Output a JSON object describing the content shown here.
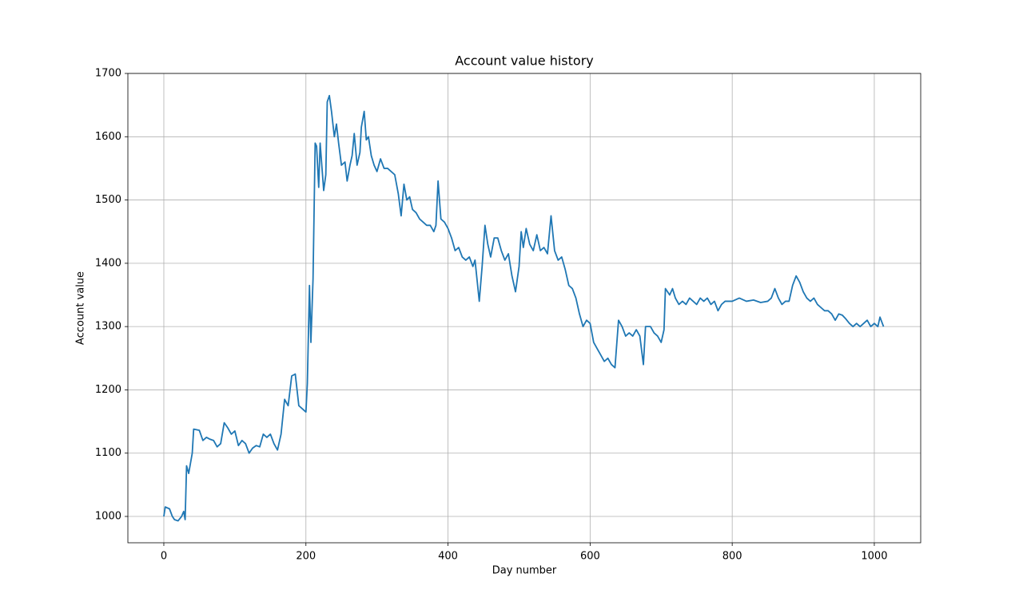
{
  "chart_data": {
    "type": "line",
    "title": "Account value history",
    "x_label": "Day number",
    "y_label": "Account value",
    "xlim": [
      -50.6,
      1065.3
    ],
    "ylim": [
      958.4,
      1700
    ],
    "xticks": [
      0,
      200,
      400,
      600,
      800,
      1000
    ],
    "yticks": [
      1000,
      1100,
      1200,
      1300,
      1400,
      1500,
      1600,
      1700
    ],
    "grid": true,
    "series": [
      {
        "name": "Account value",
        "color": "#1f77b4",
        "x": [
          0,
          2,
          8,
          12,
          15,
          20,
          25,
          28,
          30,
          32,
          35,
          40,
          42,
          50,
          55,
          60,
          65,
          70,
          75,
          80,
          85,
          90,
          95,
          100,
          105,
          110,
          115,
          120,
          125,
          130,
          135,
          140,
          145,
          150,
          155,
          160,
          165,
          170,
          175,
          180,
          185,
          190,
          195,
          200,
          202,
          205,
          207,
          210,
          213,
          215,
          218,
          220,
          225,
          228,
          230,
          233,
          236,
          240,
          243,
          246,
          250,
          255,
          258,
          262,
          265,
          268,
          272,
          276,
          278,
          282,
          285,
          288,
          292,
          296,
          300,
          305,
          310,
          315,
          320,
          325,
          330,
          334,
          338,
          342,
          346,
          350,
          355,
          360,
          365,
          370,
          375,
          380,
          383,
          386,
          390,
          395,
          400,
          405,
          410,
          415,
          420,
          425,
          430,
          435,
          438,
          444,
          448,
          452,
          456,
          460,
          465,
          470,
          475,
          480,
          485,
          490,
          495,
          500,
          503,
          506,
          510,
          515,
          520,
          525,
          530,
          535,
          540,
          545,
          550,
          555,
          560,
          565,
          570,
          575,
          580,
          585,
          590,
          595,
          600,
          605,
          610,
          615,
          620,
          625,
          630,
          635,
          640,
          645,
          650,
          655,
          660,
          665,
          670,
          675,
          678,
          685,
          690,
          695,
          700,
          704,
          706,
          712,
          716,
          720,
          725,
          730,
          735,
          740,
          745,
          750,
          755,
          760,
          765,
          770,
          775,
          780,
          785,
          790,
          800,
          810,
          820,
          830,
          840,
          850,
          855,
          860,
          865,
          870,
          875,
          880,
          885,
          890,
          895,
          900,
          905,
          910,
          915,
          920,
          925,
          930,
          935,
          940,
          945,
          950,
          955,
          960,
          965,
          970,
          975,
          980,
          985,
          990,
          995,
          1000,
          1005,
          1008,
          1013
        ],
        "values": [
          1000,
          1015,
          1012,
          1000,
          995,
          993,
          1000,
          1008,
          995,
          1080,
          1068,
          1100,
          1138,
          1136,
          1120,
          1125,
          1122,
          1120,
          1110,
          1115,
          1148,
          1140,
          1130,
          1135,
          1112,
          1120,
          1115,
          1100,
          1108,
          1112,
          1110,
          1130,
          1125,
          1130,
          1115,
          1105,
          1130,
          1185,
          1175,
          1222,
          1225,
          1175,
          1170,
          1165,
          1210,
          1365,
          1275,
          1375,
          1590,
          1585,
          1520,
          1590,
          1515,
          1540,
          1655,
          1665,
          1640,
          1600,
          1620,
          1590,
          1555,
          1560,
          1530,
          1555,
          1570,
          1605,
          1555,
          1575,
          1615,
          1640,
          1595,
          1600,
          1570,
          1555,
          1545,
          1565,
          1550,
          1550,
          1545,
          1540,
          1510,
          1475,
          1525,
          1500,
          1505,
          1485,
          1480,
          1470,
          1465,
          1460,
          1460,
          1450,
          1460,
          1530,
          1470,
          1465,
          1455,
          1440,
          1420,
          1425,
          1410,
          1405,
          1410,
          1395,
          1405,
          1340,
          1395,
          1460,
          1430,
          1410,
          1440,
          1440,
          1420,
          1405,
          1415,
          1380,
          1355,
          1395,
          1450,
          1425,
          1455,
          1430,
          1420,
          1445,
          1420,
          1425,
          1415,
          1475,
          1420,
          1405,
          1410,
          1390,
          1365,
          1360,
          1345,
          1320,
          1300,
          1310,
          1305,
          1275,
          1265,
          1255,
          1245,
          1250,
          1240,
          1235,
          1310,
          1300,
          1285,
          1290,
          1285,
          1295,
          1285,
          1240,
          1300,
          1300,
          1290,
          1285,
          1275,
          1295,
          1360,
          1350,
          1360,
          1345,
          1335,
          1340,
          1335,
          1345,
          1340,
          1335,
          1345,
          1340,
          1345,
          1335,
          1340,
          1325,
          1335,
          1340,
          1340,
          1345,
          1340,
          1342,
          1338,
          1340,
          1345,
          1360,
          1345,
          1335,
          1340,
          1340,
          1365,
          1380,
          1370,
          1355,
          1345,
          1340,
          1345,
          1335,
          1330,
          1325,
          1325,
          1320,
          1310,
          1320,
          1318,
          1312,
          1305,
          1300,
          1305,
          1300,
          1305,
          1310,
          1300,
          1305,
          1300,
          1315,
          1300
        ]
      }
    ]
  }
}
